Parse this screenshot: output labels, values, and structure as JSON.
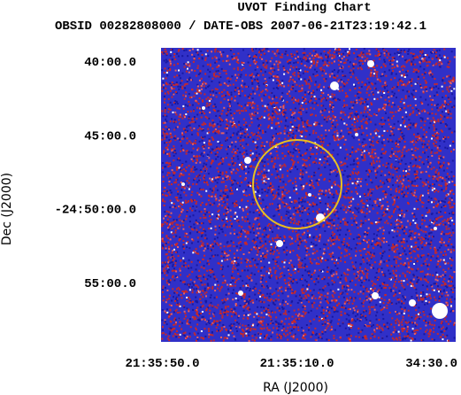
{
  "chart_data": {
    "type": "image",
    "title": "UVOT Finding Chart",
    "subtitle": "OBSID 00282808000 / DATE-OBS 2007-06-21T23:19:42.1",
    "x_label": "RA (J2000)",
    "y_label": "Dec (J2000)",
    "xlim": [
      323.96,
      323.595
    ],
    "ylim": [
      -24.9837,
      -24.6517
    ],
    "xticks": [
      {
        "value": 323.958333,
        "label": "21:35:50.0"
      },
      {
        "value": 323.791667,
        "label": "21:35:10.0"
      },
      {
        "value": 323.625,
        "label": "34:30.0"
      }
    ],
    "yticks": [
      {
        "value": -24.666667,
        "label": "40:00.0"
      },
      {
        "value": -24.75,
        "label": "45:00.0"
      },
      {
        "value": -24.833333,
        "label": "-24:50:00.0"
      },
      {
        "value": -24.916667,
        "label": "55:00.0"
      }
    ]
  }
}
